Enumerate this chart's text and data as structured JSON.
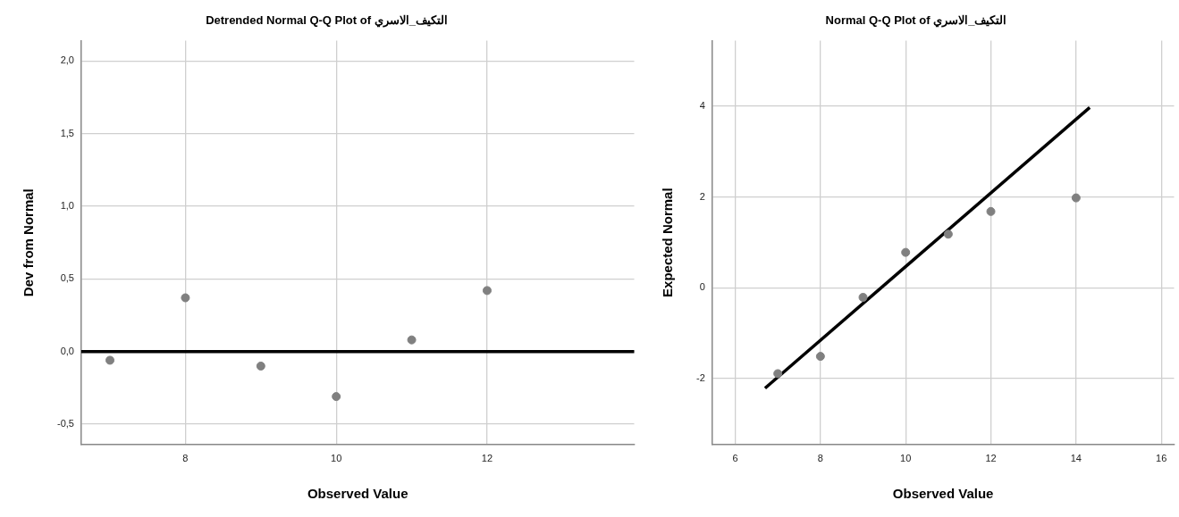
{
  "chart_data": [
    {
      "type": "scatter",
      "title": "Detrended Normal Q-Q Plot of التكيف_الاسري",
      "xlabel": "Observed Value",
      "ylabel": "Dev from Normal",
      "x": [
        7,
        8,
        9,
        10,
        11,
        12
      ],
      "values": [
        -0.06,
        0.37,
        -0.1,
        -0.31,
        0.08,
        0.42
      ],
      "color": "#808080",
      "marker": "circle",
      "xlim": [
        6.62,
        13.95
      ],
      "ylim": [
        -0.64,
        2.14
      ],
      "xticks": [
        8,
        10,
        12
      ],
      "yticks": [
        {
          "value": -0.5,
          "label": "-0,5"
        },
        {
          "value": 0,
          "label": "0,0"
        },
        {
          "value": 0.5,
          "label": "0,5"
        },
        {
          "value": 1,
          "label": "1,0"
        },
        {
          "value": 1.5,
          "label": "1,5"
        },
        {
          "value": 2,
          "label": "2,0"
        }
      ],
      "grid": true,
      "ref_lines": [
        {
          "axis": "y",
          "value": 0,
          "color": "#000000"
        }
      ]
    },
    {
      "type": "scatter",
      "title": "Normal Q-Q Plot of التكيف_الاسري",
      "xlabel": "Observed Value",
      "ylabel": "Expected Normal",
      "xlim": [
        5.46,
        16.3
      ],
      "ylim": [
        -3.45,
        5.44
      ],
      "xticks": [
        6,
        8,
        10,
        12,
        14,
        16
      ],
      "yticks": [
        -2,
        0,
        2,
        4
      ],
      "grid": true,
      "series": [
        {
          "color": "#808080",
          "marker": "circle",
          "x": [
            7,
            8,
            9,
            10,
            11,
            12,
            14
          ],
          "values": [
            -1.89,
            -1.51,
            -0.21,
            0.78,
            1.18,
            1.68,
            1.98
          ]
        },
        {
          "type": "line",
          "color": "#000000",
          "x": [
            6.7,
            14.32
          ],
          "values": [
            -2.21,
            3.97
          ]
        }
      ]
    }
  ]
}
